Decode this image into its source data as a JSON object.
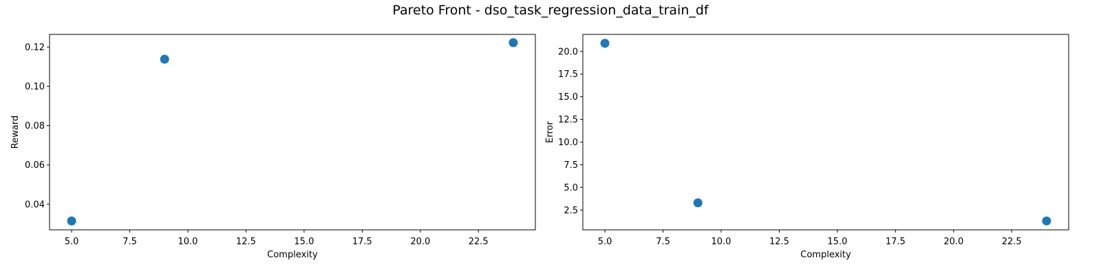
{
  "figure": {
    "suptitle": "Pareto Front - dso_task_regression_data_train_df"
  },
  "chart_data": [
    {
      "type": "scatter",
      "title": "",
      "xlabel": "Complexity",
      "ylabel": "Reward",
      "x": [
        5,
        9,
        24
      ],
      "y": [
        0.0315,
        0.1138,
        0.1222
      ],
      "xlim": [
        4.05,
        24.95
      ],
      "ylim": [
        0.027,
        0.1264
      ],
      "xticks": [
        "5.0",
        "7.5",
        "10.0",
        "12.5",
        "15.0",
        "17.5",
        "20.0",
        "22.5"
      ],
      "xtick_values": [
        5,
        7.5,
        10,
        12.5,
        15,
        17.5,
        20,
        22.5
      ],
      "yticks": [
        "0.04",
        "0.06",
        "0.08",
        "0.10",
        "0.12"
      ],
      "ytick_values": [
        0.04,
        0.06,
        0.08,
        0.1,
        0.12
      ],
      "grid": false,
      "color": "#1f77b4"
    },
    {
      "type": "scatter",
      "title": "",
      "xlabel": "Complexity",
      "ylabel": "Error",
      "x": [
        5,
        9,
        24
      ],
      "y": [
        20.9,
        3.3,
        1.3
      ],
      "xlim": [
        4.05,
        24.95
      ],
      "ylim": [
        0.32,
        21.88
      ],
      "xticks": [
        "5.0",
        "7.5",
        "10.0",
        "12.5",
        "15.0",
        "17.5",
        "20.0",
        "22.5"
      ],
      "xtick_values": [
        5,
        7.5,
        10,
        12.5,
        15,
        17.5,
        20,
        22.5
      ],
      "yticks": [
        "2.5",
        "5.0",
        "7.5",
        "10.0",
        "12.5",
        "15.0",
        "17.5",
        "20.0"
      ],
      "ytick_values": [
        2.5,
        5.0,
        7.5,
        10.0,
        12.5,
        15.0,
        17.5,
        20.0
      ],
      "grid": false,
      "color": "#1f77b4"
    }
  ]
}
